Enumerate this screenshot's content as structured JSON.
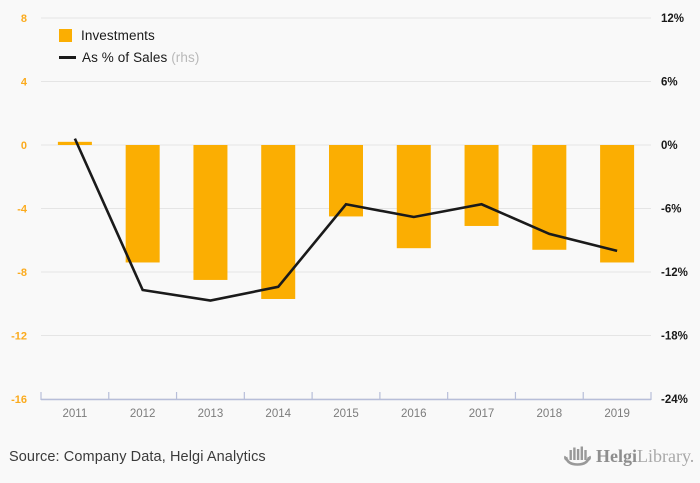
{
  "legend": {
    "bar_label": "Investments",
    "line_label": "As % of Sales",
    "line_note": "(rhs)"
  },
  "footer": {
    "source": "Source: Company Data, Helgi Analytics",
    "logo_bold": "Helgi",
    "logo_light": "Library."
  },
  "colors": {
    "background": "#f9f9f9",
    "bar": "#fbae02",
    "line": "#1a1a1a",
    "gridline": "#e5e5e5",
    "axis_line": "#b7bed9",
    "left_axis_label": "#fbab1e",
    "right_axis_label": "#191919",
    "year_label": "#7c7c7c"
  },
  "chart_data": {
    "type": "bar+line",
    "title": "",
    "categories": [
      "2011",
      "2012",
      "2013",
      "2014",
      "2015",
      "2016",
      "2017",
      "2018",
      "2019"
    ],
    "series": [
      {
        "name": "Investments",
        "type": "bar",
        "axis": "left",
        "values": [
          0.2,
          -7.4,
          -8.5,
          -9.7,
          -4.5,
          -6.5,
          -5.1,
          -6.6,
          -7.4
        ]
      },
      {
        "name": "As % of Sales",
        "type": "line",
        "axis": "right",
        "values_pct": [
          0.6,
          -13.7,
          -14.7,
          -13.4,
          -5.6,
          -6.8,
          -5.6,
          -8.4,
          -10.0
        ]
      }
    ],
    "left_axis": {
      "ticks": [
        8,
        4,
        0,
        -4,
        -8,
        -12,
        -16
      ],
      "range": [
        -16,
        8
      ]
    },
    "right_axis": {
      "ticks": [
        "12%",
        "6%",
        "0%",
        "-6%",
        "-12%",
        "-18%",
        "-24%"
      ],
      "range_pct": [
        -24,
        12
      ]
    },
    "grid": true,
    "legend_position": "top-left"
  }
}
